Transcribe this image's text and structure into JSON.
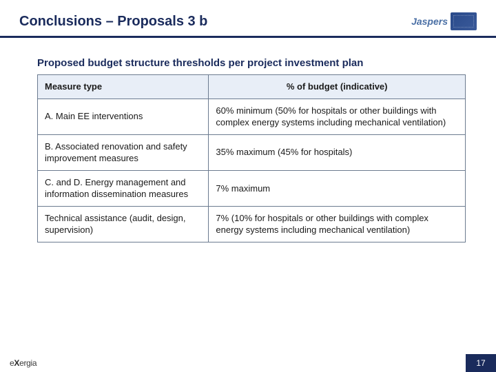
{
  "header": {
    "title": "Conclusions – Proposals 3 b",
    "logo_text": "Jaspers"
  },
  "content": {
    "subtitle": "Proposed budget structure thresholds per project investment plan"
  },
  "table": {
    "columns": [
      "Measure type",
      "% of budget (indicative)"
    ],
    "rows": [
      {
        "measure": "A. Main EE interventions",
        "budget": "60% minimum (50% for hospitals or other buildings with complex energy systems including mechanical ventilation)"
      },
      {
        "measure": "B. Associated renovation and safety improvement measures",
        "budget": "35% maximum (45% for hospitals)"
      },
      {
        "measure": "C. and D. Energy management and information dissemination measures",
        "budget": "7% maximum"
      },
      {
        "measure": "Technical assistance (audit, design, supervision)",
        "budget": "7% (10% for hospitals or other buildings with complex energy systems including mechanical ventilation)"
      }
    ]
  },
  "footer": {
    "logo_text": "exergia",
    "page_number": "17"
  },
  "colors": {
    "primary": "#1a2b5c",
    "header_bg": "#e8eef7",
    "border": "#6b7a8f",
    "text": "#1a1a1a"
  }
}
